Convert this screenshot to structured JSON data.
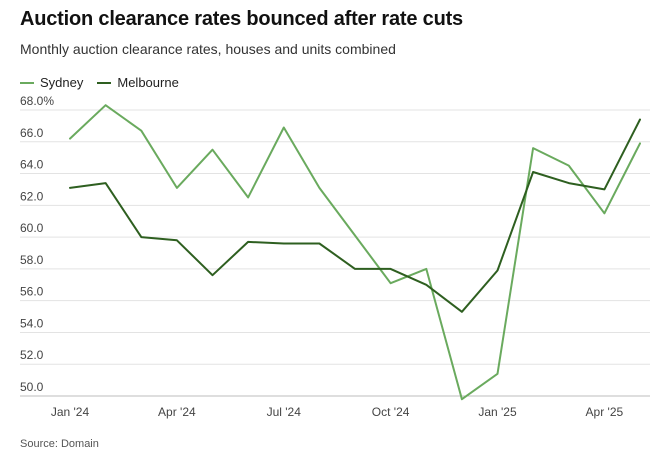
{
  "title": "Auction clearance rates bounced after rate cuts",
  "subtitle": "Monthly auction clearance rates, houses and units combined",
  "source": "Source: Domain",
  "colors": {
    "Sydney": "#6aaa5e",
    "Melbourne": "#2e5f20",
    "grid": "#e3e3e3"
  },
  "chart_data": {
    "type": "line",
    "x": [
      "Jan 2024",
      "Feb 2024",
      "Mar 2024",
      "Apr 2024",
      "May 2024",
      "Jun 2024",
      "Jul 2024",
      "Aug 2024",
      "Sep 2024",
      "Oct 2024",
      "Nov 2024",
      "Dec 2024",
      "Jan 2025",
      "Feb 2025",
      "Mar 2025",
      "Apr 2025",
      "May 2025"
    ],
    "x_ticks": [
      {
        "index": 0,
        "label": "Jan '24"
      },
      {
        "index": 3,
        "label": "Apr '24"
      },
      {
        "index": 6,
        "label": "Jul '24"
      },
      {
        "index": 9,
        "label": "Oct '24"
      },
      {
        "index": 12,
        "label": "Jan '25"
      },
      {
        "index": 15,
        "label": "Apr '25"
      }
    ],
    "y_ticks": [
      "68.0%",
      "66.0",
      "64.0",
      "62.0",
      "60.0",
      "58.0",
      "56.0",
      "54.0",
      "52.0",
      "50.0"
    ],
    "ylim": [
      50,
      68
    ],
    "legend_position": "top-left",
    "grid": true,
    "series": [
      {
        "name": "Sydney",
        "values": [
          66.2,
          68.3,
          66.7,
          63.1,
          65.5,
          62.5,
          66.9,
          63.1,
          60.1,
          57.1,
          58.0,
          49.8,
          51.4,
          65.6,
          64.5,
          61.5,
          65.9
        ]
      },
      {
        "name": "Melbourne",
        "values": [
          63.1,
          63.4,
          60.0,
          59.8,
          57.6,
          59.7,
          59.6,
          59.6,
          58.0,
          58.0,
          57.0,
          55.3,
          57.9,
          64.1,
          63.4,
          63.0,
          67.4
        ]
      }
    ]
  }
}
